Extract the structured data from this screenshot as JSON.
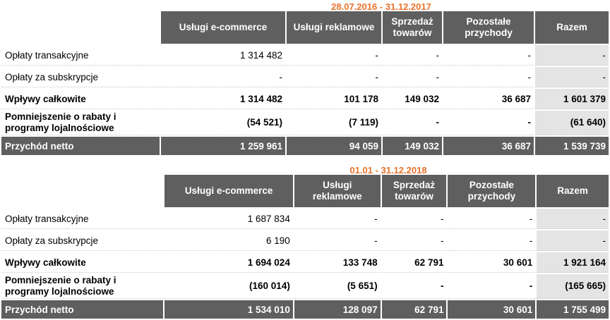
{
  "tables": [
    {
      "period": "28.07.2016 - 31.12.2017",
      "headers": [
        "Usługi e-commerce",
        "Usługi reklamowe",
        "Sprzedaż towarów",
        "Pozostałe przychody",
        "Razem"
      ],
      "rows": [
        {
          "label": "Opłaty transakcyjne",
          "values": [
            "1 314 482",
            "-",
            "-",
            "-",
            "-"
          ]
        },
        {
          "label": "Opłaty za subskrypcje",
          "values": [
            "-",
            "-",
            "-",
            "-",
            "-"
          ]
        },
        {
          "label": "Wpływy całkowite",
          "values": [
            "1 314 482",
            "101 178",
            "149 032",
            "36 687",
            "1 601 379"
          ]
        },
        {
          "label": "Pomniejszenie o rabaty i programy lojalnościowe",
          "values": [
            "(54 521)",
            "(7 119)",
            "-",
            "-",
            "(61 640)"
          ]
        },
        {
          "label": "Przychód netto",
          "values": [
            "1 259 961",
            "94 059",
            "149 032",
            "36 687",
            "1 539 739"
          ]
        }
      ]
    },
    {
      "period": "01.01 - 31.12.2018",
      "headers": [
        "Usługi e-commerce",
        "Usługi reklamowe",
        "Sprzedaż towarów",
        "Pozostałe przychody",
        "Razem"
      ],
      "rows": [
        {
          "label": "Opłaty transakcyjne",
          "values": [
            "1 687 834",
            "-",
            "-",
            "-",
            "-"
          ]
        },
        {
          "label": "Opłaty za subskrypcje",
          "values": [
            "6 190",
            "-",
            "-",
            "-",
            "-"
          ]
        },
        {
          "label": "Wpływy całkowite",
          "values": [
            "1 694 024",
            "133 748",
            "62 791",
            "30 601",
            "1 921 164"
          ]
        },
        {
          "label": "Pomniejszenie o rabaty i programy lojalnościowe",
          "values": [
            "(160 014)",
            "(5 651)",
            "-",
            "-",
            "(165 665)"
          ]
        },
        {
          "label": "Przychód netto",
          "values": [
            "1 534 010",
            "128 097",
            "62 791",
            "30 601",
            "1 755 499"
          ]
        }
      ]
    }
  ]
}
